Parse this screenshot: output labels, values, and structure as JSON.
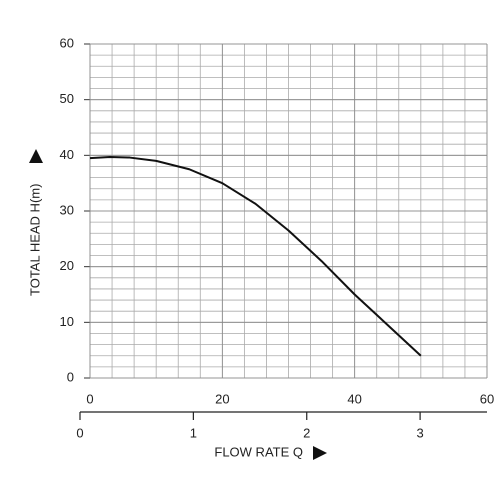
{
  "chart_data": {
    "type": "line",
    "x_label": "FLOW RATE Q",
    "y_label": "TOTAL HEAD H(m)",
    "x": [
      0,
      3,
      6,
      10,
      15,
      20,
      25,
      30,
      35,
      40,
      45,
      50
    ],
    "series": [
      {
        "color": "#111111",
        "values": [
          39.5,
          39.7,
          39.6,
          39,
          37.5,
          35,
          31.3,
          26.5,
          21,
          15,
          9.5,
          4
        ]
      }
    ],
    "xlim": [
      0,
      60
    ],
    "xticks": [
      0,
      20,
      40,
      60
    ],
    "ylim": [
      0,
      60
    ],
    "yticks": [
      0,
      10,
      20,
      30,
      40,
      50,
      60
    ],
    "x2lim": [
      0,
      3.59
    ],
    "x2ticks": [
      0,
      1,
      2,
      3
    ],
    "grid": true
  }
}
